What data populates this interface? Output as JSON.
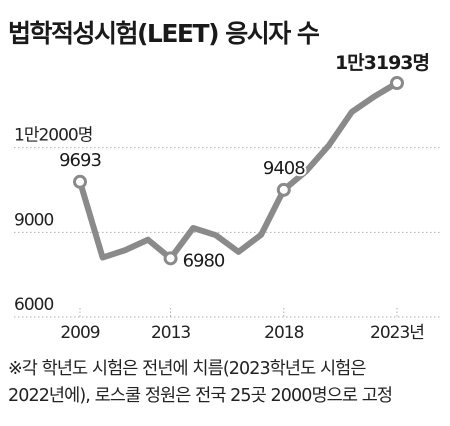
{
  "title": "법학적성시험(LEET) 응시자 수",
  "note": {
    "line1": "※각 학년도 시험은 전년에 치름(2023학년도 시험은",
    "line2": "2022년에), 로스쿨 정원은 전국 25곳 2000명으로 고정"
  },
  "chart_data": {
    "type": "line",
    "title": "법학적성시험(LEET) 응시자 수",
    "xlabel": "",
    "ylabel": "",
    "x": [
      2009,
      2010,
      2011,
      2012,
      2013,
      2014,
      2015,
      2016,
      2017,
      2018,
      2019,
      2020,
      2021,
      2022,
      2023
    ],
    "series": [
      {
        "values": [
          9693,
          7008,
          7272,
          7640,
          6980,
          8056,
          7800,
          7209,
          7817,
          9408,
          10078,
          10992,
          12165,
          12715,
          13193
        ]
      }
    ],
    "ylim": [
      6000,
      13193
    ],
    "y_ticks": [
      {
        "value": 6000,
        "label": "6000"
      },
      {
        "value": 9000,
        "label": "9000"
      },
      {
        "value": 12000,
        "label": "1만2000명"
      }
    ],
    "x_ticks": [
      {
        "value": 2009,
        "label": "2009"
      },
      {
        "value": 2013,
        "label": "2013"
      },
      {
        "value": 2018,
        "label": "2018"
      },
      {
        "value": 2023,
        "label": "2023년"
      }
    ],
    "data_labels": [
      {
        "x": 2009,
        "label": "9693"
      },
      {
        "x": 2013,
        "label": "6980"
      },
      {
        "x": 2018,
        "label": "9408"
      },
      {
        "x": 2023,
        "label": "1만3193명"
      }
    ],
    "grid": true,
    "line_color": "#8a8a8a",
    "grid_color": "#b0b0b0"
  }
}
